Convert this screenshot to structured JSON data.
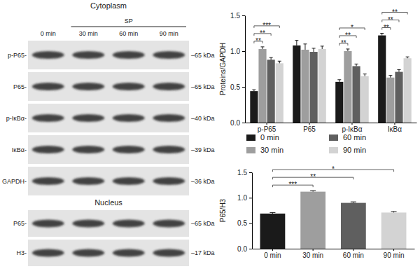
{
  "blot": {
    "panels": [
      {
        "title": "Cytoplasm",
        "group_label": "SP",
        "group_lanes": [
          "30 min",
          "60 min",
          "90 min"
        ],
        "lanes": [
          "0 min",
          "30 min",
          "60 min",
          "90 min"
        ],
        "rows": [
          {
            "label": "p-P65-",
            "size": "–65 kDa"
          },
          {
            "label": "P65-",
            "size": "–65 kDa"
          },
          {
            "label": "p-IκBα-",
            "size": "–40 kDa"
          },
          {
            "label": "IκBα-",
            "size": "–39 kDa"
          },
          {
            "label": "GAPDH-",
            "size": "–36 kDa"
          }
        ]
      },
      {
        "title": "Nucleus",
        "rows": [
          {
            "label": "P65-",
            "size": "–65 kDa"
          },
          {
            "label": "H3-",
            "size": "–17 kDa"
          }
        ]
      }
    ]
  },
  "chart_data": [
    {
      "type": "bar",
      "y_label": "Proteins/GAPDH",
      "categories": [
        "p-P65",
        "P65",
        "p-IκBα",
        "IκBα"
      ],
      "series": [
        {
          "name": "0 min",
          "color": "#1a1a1a",
          "values": [
            0.44,
            1.08,
            0.57,
            1.22
          ],
          "errors": [
            0.02,
            0.07,
            0.03,
            0.03
          ]
        },
        {
          "name": "30 min",
          "color": "#9e9e9e",
          "values": [
            1.03,
            1.02,
            1.0,
            0.63
          ],
          "errors": [
            0.03,
            0.08,
            0.03,
            0.03
          ]
        },
        {
          "name": "60 min",
          "color": "#5f5f5f",
          "values": [
            0.88,
            0.99,
            0.79,
            0.71
          ],
          "errors": [
            0.03,
            0.05,
            0.03,
            0.03
          ]
        },
        {
          "name": "90 min",
          "color": "#d3d3d3",
          "values": [
            0.83,
            1.03,
            0.65,
            0.9
          ],
          "errors": [
            0.03,
            0.04,
            0.03,
            0.02
          ]
        }
      ],
      "ylim": [
        0,
        1.5
      ],
      "yticks": [
        {
          "value": 0,
          "label": "0.0"
        },
        0.5,
        {
          "value": 1,
          "label": "1.0"
        },
        1.5
      ],
      "legend": "bottom",
      "annotations": [
        {
          "text": "**",
          "category": "p-P65",
          "series": [
            "0 min",
            "30 min"
          ]
        },
        {
          "text": "**",
          "category": "p-P65",
          "series": [
            "0 min",
            "60 min"
          ]
        },
        {
          "text": "***",
          "category": "p-P65",
          "series": [
            "0 min",
            "90 min"
          ]
        },
        {
          "text": "**",
          "category": "p-IκBα",
          "series": [
            "0 min",
            "30 min"
          ]
        },
        {
          "text": "**",
          "category": "p-IκBα",
          "series": [
            "0 min",
            "60 min"
          ]
        },
        {
          "text": "*",
          "category": "p-IκBα",
          "series": [
            "0 min",
            "90 min"
          ]
        },
        {
          "text": "**",
          "category": "IκBα",
          "series": [
            "0 min",
            "30 min"
          ]
        },
        {
          "text": "**",
          "category": "IκBα",
          "series": [
            "0 min",
            "60 min"
          ]
        },
        {
          "text": "**",
          "category": "IκBα",
          "series": [
            "0 min",
            "90 min"
          ]
        }
      ]
    },
    {
      "type": "bar",
      "y_label": "P65/H3",
      "categories": [
        "0 min",
        "30 min",
        "60 min",
        "90 min"
      ],
      "values": [
        0.69,
        1.12,
        0.9,
        0.71
      ],
      "errors": [
        0.02,
        0.02,
        0.02,
        0.02
      ],
      "colors": [
        "#1a1a1a",
        "#9e9e9e",
        "#5f5f5f",
        "#d3d3d3"
      ],
      "ylim": [
        0,
        1.5
      ],
      "yticks": [
        {
          "value": 0,
          "label": "0.0"
        },
        0.5,
        {
          "value": 1,
          "label": "1.0"
        },
        1.5
      ],
      "annotations": [
        {
          "text": "***",
          "categories": [
            "0 min",
            "30 min"
          ]
        },
        {
          "text": "**",
          "categories": [
            "0 min",
            "60 min"
          ]
        },
        {
          "text": "*",
          "categories": [
            "0 min",
            "90 min"
          ]
        }
      ]
    }
  ]
}
